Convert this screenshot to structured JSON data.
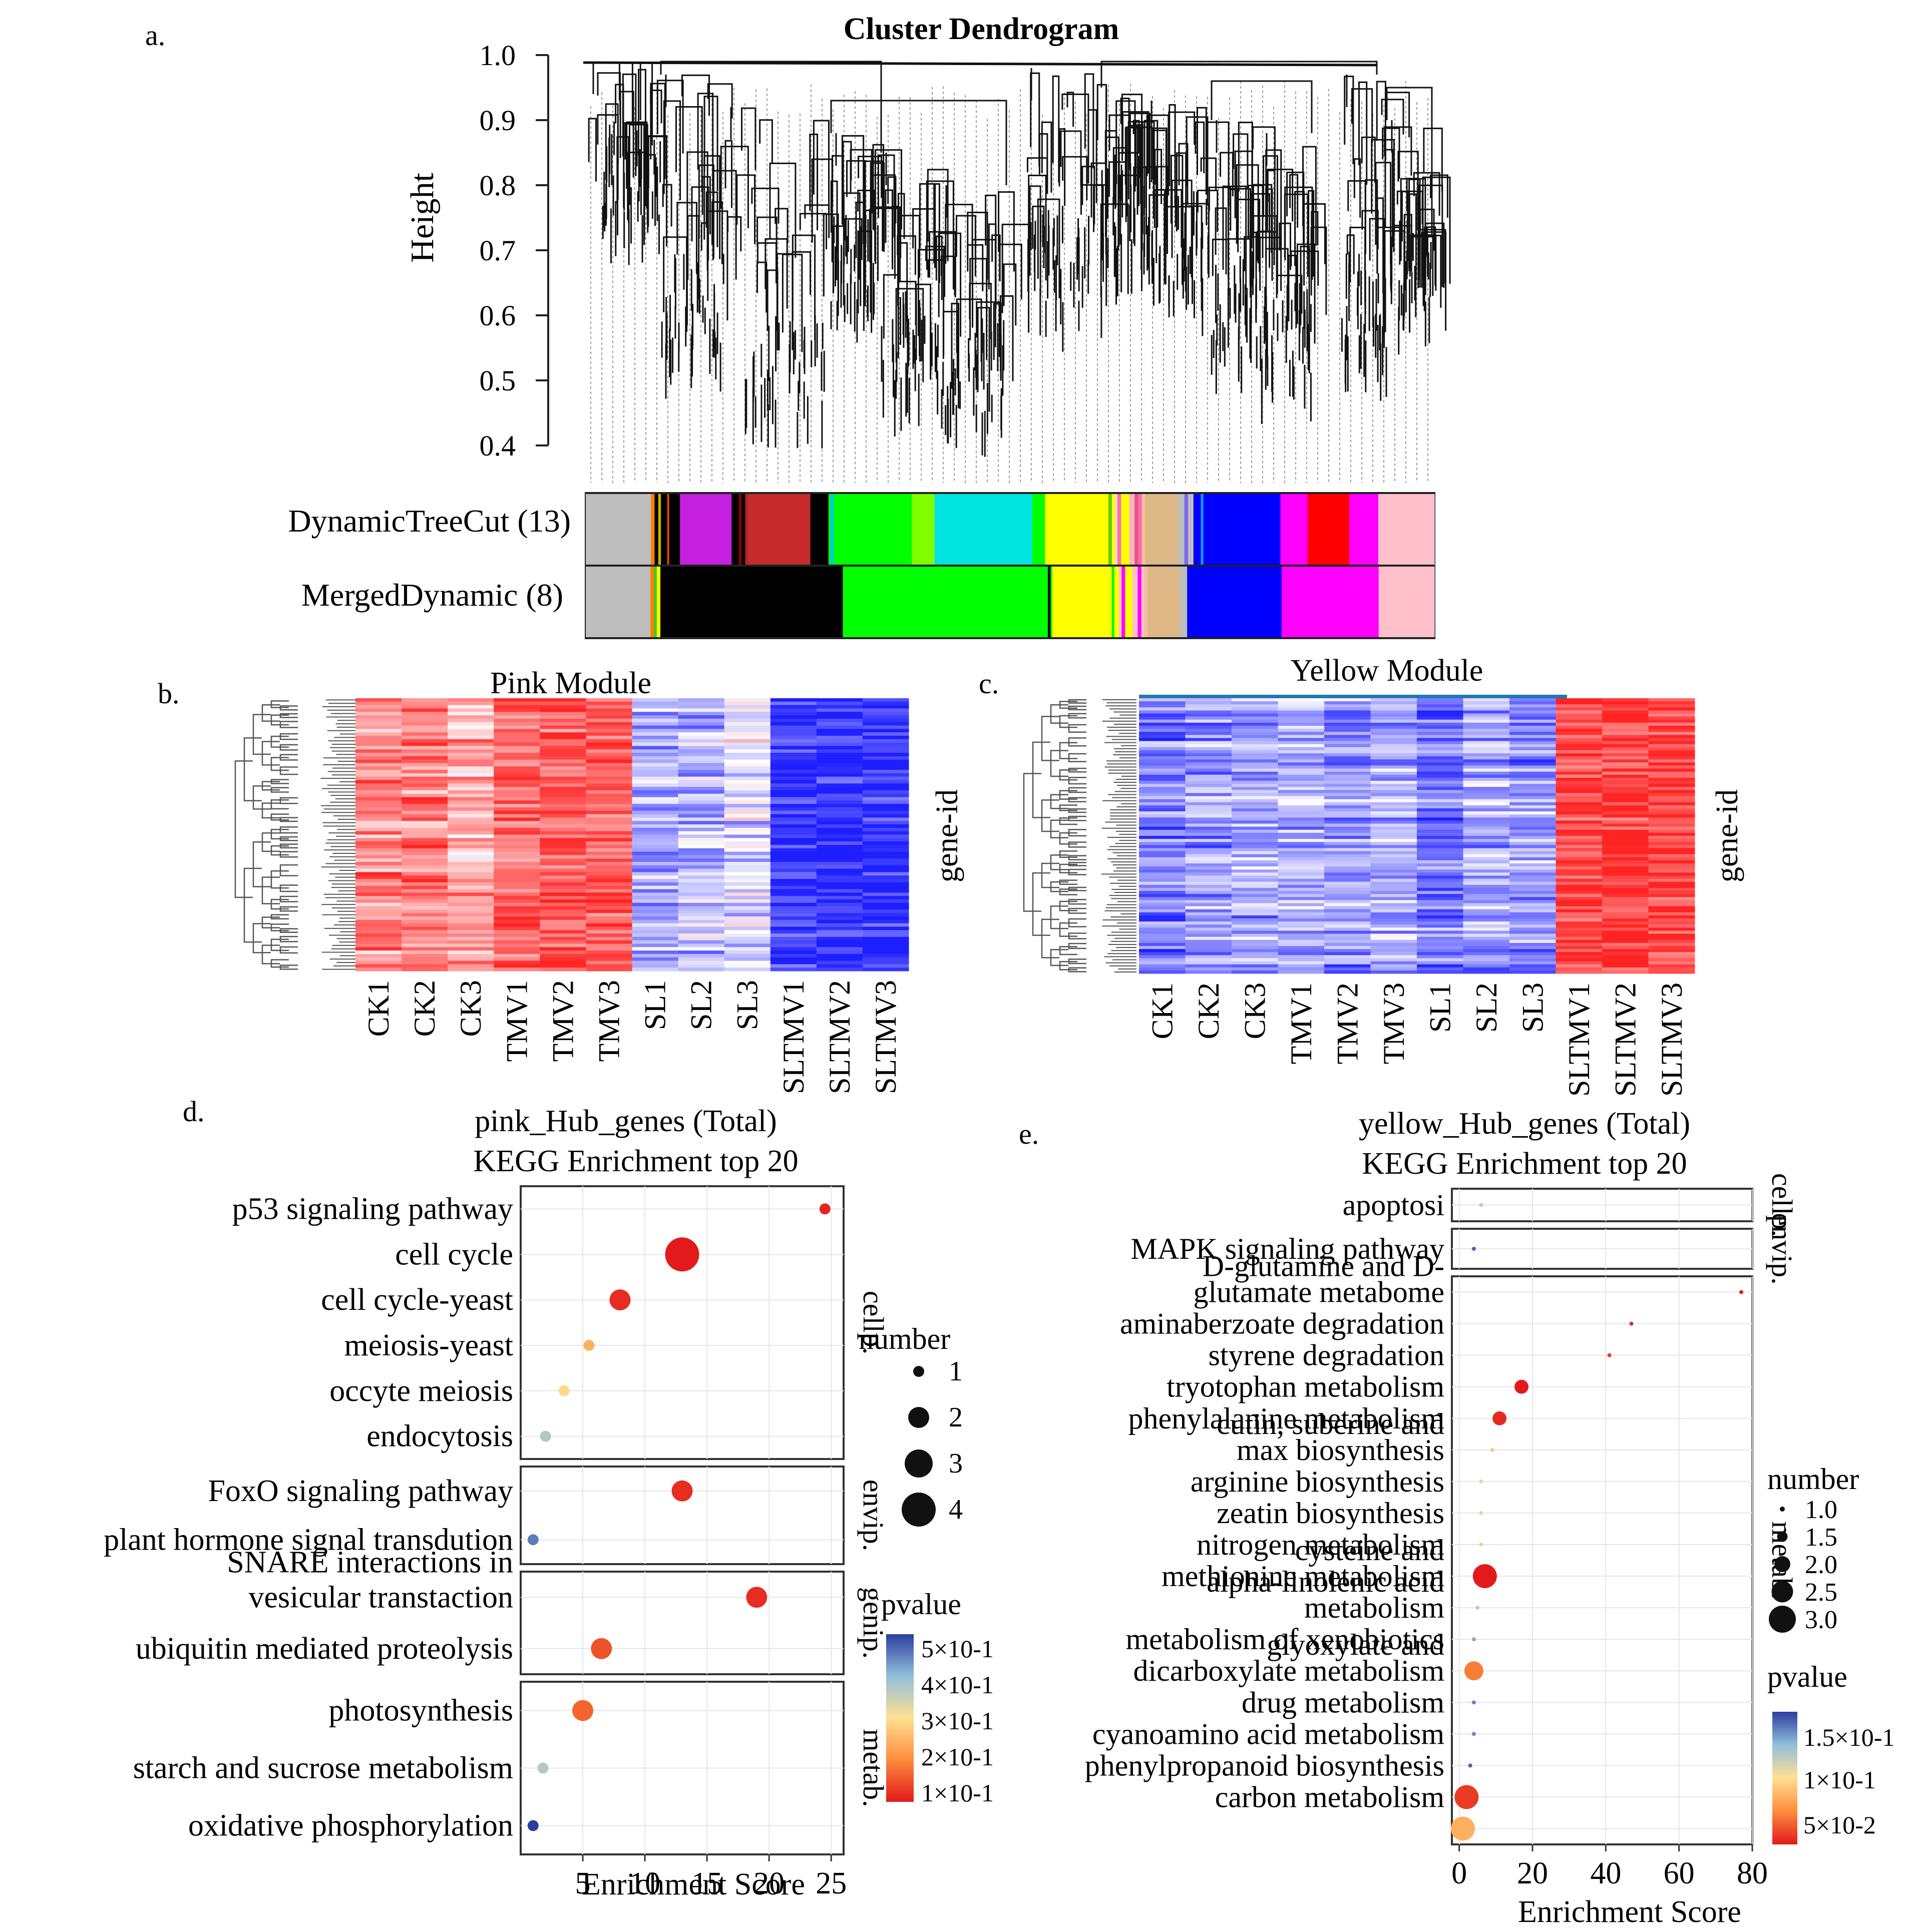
{
  "panels": {
    "a": {
      "letter": "a.",
      "title": "Cluster Dendrogram",
      "ylabel": "Height",
      "yticks": [
        "1.0",
        "0.9",
        "0.8",
        "0.7",
        "0.6",
        "0.5",
        "0.4"
      ],
      "row_labels": [
        "DynamicTreeCut (13)",
        "MergedDynamic (8)"
      ],
      "dynamic_segments": [
        [
          "#bebebe",
          0.072
        ],
        [
          "#ff7f00",
          0.004
        ],
        [
          "#000000",
          0.004
        ],
        [
          "#c8b400",
          0.003
        ],
        [
          "#000000",
          0.007
        ],
        [
          "#ff4500",
          0.002
        ],
        [
          "#000000",
          0.012
        ],
        [
          "#c51fe0",
          0.057
        ],
        [
          "#000000",
          0.008
        ],
        [
          "#8b0000",
          0.003
        ],
        [
          "#000000",
          0.004
        ],
        [
          "#b22222",
          0.003
        ],
        [
          "#c62a2a",
          0.069
        ],
        [
          "#000000",
          0.02
        ],
        [
          "#00ff00",
          0.002
        ],
        [
          "#00ced1",
          0.004
        ],
        [
          "#00ff00",
          0.086
        ],
        [
          "#7fff00",
          0.025
        ],
        [
          "#00e5e0",
          0.108
        ],
        [
          "#00ff00",
          0.014
        ],
        [
          "#ffff00",
          0.07
        ],
        [
          "#66cd00",
          0.004
        ],
        [
          "#ffff00",
          0.003
        ],
        [
          "#f5deb3",
          0.003
        ],
        [
          "#ff69b4",
          0.004
        ],
        [
          "#ffff00",
          0.009
        ],
        [
          "#ffb6c1",
          0.006
        ],
        [
          "#e75480",
          0.004
        ],
        [
          "#ff69b4",
          0.004
        ],
        [
          "#f0c39a",
          0.004
        ],
        [
          "#deb887",
          0.036
        ],
        [
          "#bebebe",
          0.007
        ],
        [
          "#7b68ee",
          0.004
        ],
        [
          "#bebebe",
          0.006
        ],
        [
          "#0000ff",
          0.008
        ],
        [
          "#1e90ff",
          0.003
        ],
        [
          "#0000ff",
          0.085
        ],
        [
          "#ff00ff",
          0.03
        ],
        [
          "#ff0000",
          0.046
        ],
        [
          "#ff00ff",
          0.032
        ],
        [
          "#ffc0cb",
          0.062
        ]
      ],
      "merged_segments": [
        [
          "#bebebe",
          0.072
        ],
        [
          "#ff7f00",
          0.004
        ],
        [
          "#32cd32",
          0.003
        ],
        [
          "#ffff00",
          0.004
        ],
        [
          "#000000",
          0.203
        ],
        [
          "#00ff00",
          0.228
        ],
        [
          "#000000",
          0.003
        ],
        [
          "#00ff00",
          0.002
        ],
        [
          "#ffff00",
          0.066
        ],
        [
          "#00ff00",
          0.003
        ],
        [
          "#ffff00",
          0.005
        ],
        [
          "#ffc0cb",
          0.003
        ],
        [
          "#ff00ff",
          0.004
        ],
        [
          "#ffff00",
          0.008
        ],
        [
          "#ffc0cb",
          0.006
        ],
        [
          "#ff00ff",
          0.004
        ],
        [
          "#ffc0cb",
          0.003
        ],
        [
          "#f0c39a",
          0.004
        ],
        [
          "#deb887",
          0.036
        ],
        [
          "#bebebe",
          0.008
        ],
        [
          "#0000ff",
          0.105
        ],
        [
          "#ff00ff",
          0.108
        ],
        [
          "#ffc0cb",
          0.062
        ]
      ]
    },
    "b": {
      "letter": "b.",
      "title": "Pink Module",
      "side_label": "gene-id",
      "columns": [
        "CK1",
        "CK2",
        "CK3",
        "TMV1",
        "TMV2",
        "TMV3",
        "SL1",
        "SL2",
        "SL3",
        "SLTMV1",
        "SLTMV2",
        "SLTMV3"
      ],
      "column_profile": [
        0.55,
        0.55,
        0.4,
        0.7,
        0.72,
        0.7,
        -0.35,
        -0.3,
        -0.15,
        -0.9,
        -0.92,
        -0.9
      ]
    },
    "c": {
      "letter": "c.",
      "title": "Yellow Module",
      "side_label": "gene-id",
      "columns": [
        "CK1",
        "CK2",
        "CK3",
        "TMV1",
        "TMV2",
        "TMV3",
        "SL1",
        "SL2",
        "SL3",
        "SLTMV1",
        "SLTMV2",
        "SLTMV3"
      ],
      "column_profile": [
        -0.55,
        -0.45,
        -0.4,
        -0.35,
        -0.45,
        -0.35,
        -0.6,
        -0.4,
        -0.5,
        0.85,
        0.88,
        0.85
      ]
    },
    "d": {
      "letter": "d.",
      "title": "pink_Hub_genes (Total)",
      "subtitle": "KEGG Enrichment top 20",
      "xlabel": "Enrichment Score",
      "legend_size_title": "number",
      "legend_size_labels": [
        "1",
        "2",
        "3",
        "4"
      ],
      "legend_color_title": "pvalue",
      "legend_color_labels": [
        "5×10-1",
        "4×10-1",
        "3×10-1",
        "2×10-1",
        "1×10-1"
      ],
      "colors": {
        "low": "#e31a1c",
        "mid": "#fee090",
        "high": "#2c3e9e"
      }
    },
    "e": {
      "letter": "e.",
      "title": "yellow_Hub_genes (Total)",
      "subtitle": "KEGG Enrichment top 20",
      "xlabel": "Enrichment Score",
      "legend_size_title": "number",
      "legend_size_labels": [
        "1.0",
        "1.5",
        "2.0",
        "2.5",
        "3.0"
      ],
      "legend_color_title": "pvalue",
      "legend_color_labels": [
        "1.5×10-1",
        "1×10-1",
        "5×10-2"
      ]
    }
  },
  "chart_data": [
    {
      "type": "scatter",
      "panel": "d",
      "title": "pink_Hub_genes (Total) KEGG Enrichment top 20",
      "xlabel": "Enrichment Score",
      "xlim": [
        0,
        26
      ],
      "xticks": [
        5,
        10,
        15,
        20,
        25
      ],
      "facets": [
        {
          "name": "cellp.",
          "terms": [
            {
              "term": "p53 signaling pathway",
              "x": 24.5,
              "number": 1,
              "pvalue": 0.05
            },
            {
              "term": "cell cycle",
              "x": 13.0,
              "number": 4,
              "pvalue": 0.04
            },
            {
              "term": "cell cycle-yeast",
              "x": 8.0,
              "number": 2,
              "pvalue": 0.06
            },
            {
              "term": "meiosis-yeast",
              "x": 5.5,
              "number": 1,
              "pvalue": 0.22
            },
            {
              "term": "occyte meiosis",
              "x": 3.5,
              "number": 1,
              "pvalue": 0.28
            },
            {
              "term": "endocytosis",
              "x": 2.0,
              "number": 1,
              "pvalue": 0.38
            }
          ]
        },
        {
          "name": "envip.",
          "terms": [
            {
              "term": "FoxO signaling pathway",
              "x": 13.0,
              "number": 2,
              "pvalue": 0.06
            },
            {
              "term": "plant hormone signal transdution",
              "x": 1.0,
              "number": 1,
              "pvalue": 0.48
            }
          ]
        },
        {
          "name": "genip.",
          "terms": [
            {
              "term": "SNARE interactions in vesicular transtaction",
              "x": 19.0,
              "number": 2,
              "pvalue": 0.06
            },
            {
              "term": "ubiquitin mediated proteolysis",
              "x": 6.5,
              "number": 2,
              "pvalue": 0.1
            }
          ]
        },
        {
          "name": "metab.",
          "terms": [
            {
              "term": "photosynthesis",
              "x": 5.0,
              "number": 2,
              "pvalue": 0.12
            },
            {
              "term": "starch and sucrose metabolism",
              "x": 1.8,
              "number": 1,
              "pvalue": 0.38
            },
            {
              "term": "oxidative phosphorylation",
              "x": 1.0,
              "number": 1,
              "pvalue": 0.55
            }
          ]
        }
      ]
    },
    {
      "type": "scatter",
      "panel": "e",
      "title": "yellow_Hub_genes (Total) KEGG Enrichment top 20",
      "xlabel": "Enrichment Score",
      "xlim": [
        -2,
        80
      ],
      "xticks": [
        0,
        20,
        40,
        60,
        80
      ],
      "facets": [
        {
          "name": "cellp.",
          "terms": [
            {
              "term": "apoptosi",
              "x": 6,
              "number": 1.0,
              "pvalue": 0.13
            }
          ]
        },
        {
          "name": "envip.",
          "terms": [
            {
              "term": "MAPK signaling pathway",
              "x": 4,
              "number": 1.0,
              "pvalue": 0.17
            }
          ]
        },
        {
          "name": "metab.",
          "terms": [
            {
              "term": "D-glutamine and D-glutamate metabome",
              "x": 77,
              "number": 1.0,
              "pvalue": 0.04
            },
            {
              "term": "aminaberzoate degradation",
              "x": 47,
              "number": 1.0,
              "pvalue": 0.045
            },
            {
              "term": "styrene degradation",
              "x": 41,
              "number": 1.0,
              "pvalue": 0.05
            },
            {
              "term": "tryotophan metabolism",
              "x": 17,
              "number": 2.0,
              "pvalue": 0.04
            },
            {
              "term": "phenylalanine metabolism",
              "x": 11,
              "number": 2.0,
              "pvalue": 0.045
            },
            {
              "term": "cutin, suberine and max biosynthesis",
              "x": 9,
              "number": 1.0,
              "pvalue": 0.1
            },
            {
              "term": "arginine biosynthesis",
              "x": 6,
              "number": 1.0,
              "pvalue": 0.12
            },
            {
              "term": "zeatin biosynthesis",
              "x": 6,
              "number": 1.0,
              "pvalue": 0.12
            },
            {
              "term": "nitrogen metabolism",
              "x": 6,
              "number": 1.0,
              "pvalue": 0.12
            },
            {
              "term": "cysteine and methionine metabolism",
              "x": 7,
              "number": 3.0,
              "pvalue": 0.04
            },
            {
              "term": "alpha-linolenic acid metabolism",
              "x": 5,
              "number": 1.0,
              "pvalue": 0.13
            },
            {
              "term": "metabolism of xenobiotics",
              "x": 4,
              "number": 1.0,
              "pvalue": 0.15
            },
            {
              "term": "glyoxylate and dicarboxylate metabolism",
              "x": 4,
              "number": 2.5,
              "pvalue": 0.07
            },
            {
              "term": "drug metabolism",
              "x": 4,
              "number": 1.0,
              "pvalue": 0.16
            },
            {
              "term": "cyanoamino acid metabolism",
              "x": 4,
              "number": 1.0,
              "pvalue": 0.16
            },
            {
              "term": "phenylpropanoid biosynthesis",
              "x": 3,
              "number": 1.0,
              "pvalue": 0.17
            },
            {
              "term": "carbon metabolism",
              "x": 2,
              "number": 3.0,
              "pvalue": 0.05
            },
            {
              "term": "",
              "x": 1,
              "number": 3.0,
              "pvalue": 0.09
            }
          ]
        }
      ]
    }
  ]
}
